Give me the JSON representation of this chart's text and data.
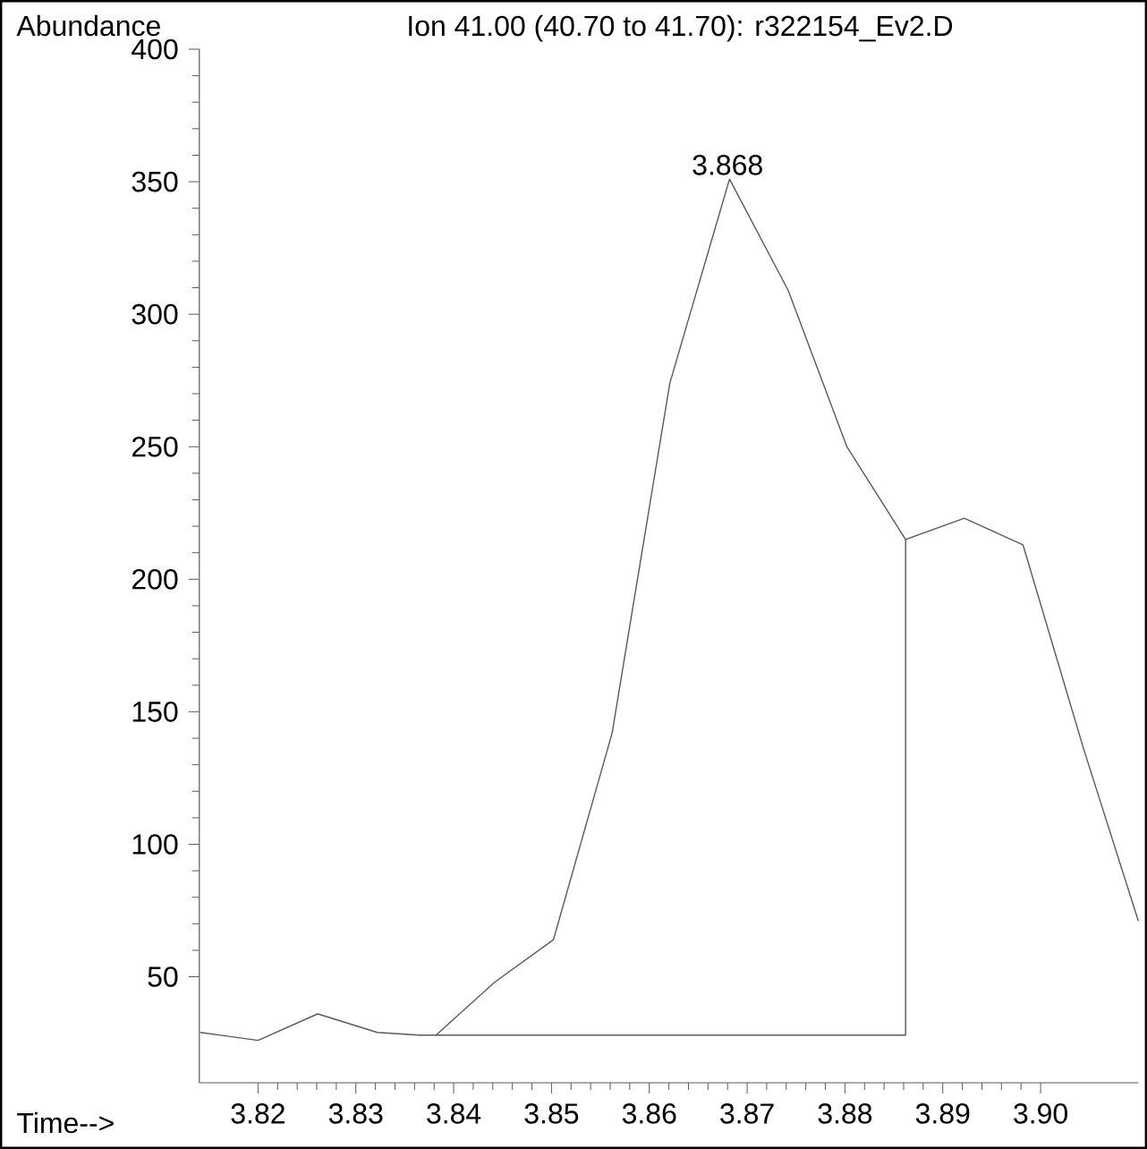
{
  "chart_data": {
    "type": "line",
    "title": "Ion  41.00 (40.70 to 41.70): r322154_Ev2.D",
    "xlabel": "Time-->",
    "ylabel": "Abundance",
    "series": [
      {
        "color": "#595959",
        "x": [
          3.8141,
          3.82,
          3.8261,
          3.8322,
          3.8365,
          3.8382,
          3.8442,
          3.8502,
          3.8562,
          3.8621,
          3.8682,
          3.8742,
          3.8802,
          3.8862,
          3.8922,
          3.8982,
          3.9044,
          3.91
        ],
        "values": [
          29,
          26,
          36,
          29,
          28,
          28,
          48,
          64,
          142,
          274,
          351,
          309,
          250,
          215,
          223,
          213,
          136,
          71
        ]
      },
      {
        "type": "line",
        "color": "#595959",
        "x": [
          3.8382,
          3.8862,
          3.8862
        ],
        "values": [
          28,
          28,
          215
        ]
      }
    ],
    "xlim": [
      3.814,
      3.91
    ],
    "ylim": [
      10,
      400
    ],
    "xticks": [
      3.82,
      3.83,
      3.84,
      3.85,
      3.86,
      3.87,
      3.88,
      3.89,
      {
        "value": 3.9,
        "label": "3.90"
      }
    ],
    "yticks": [
      50,
      100,
      150,
      200,
      250,
      300,
      350,
      400
    ],
    "annotations": [
      {
        "text": "3.868",
        "x": 3.868,
        "y": 351
      }
    ]
  }
}
